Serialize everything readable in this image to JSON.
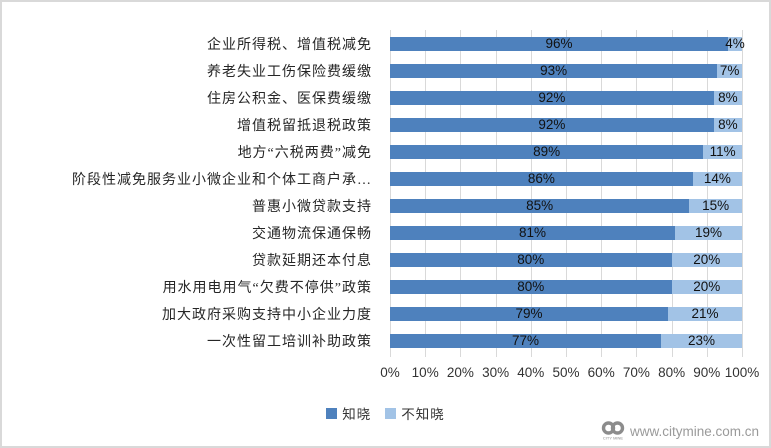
{
  "chart_data": {
    "type": "bar",
    "orientation": "horizontal",
    "stacked": true,
    "title": "",
    "categories": [
      "企业所得税、增值税减免",
      "养老失业工伤保险费缓缴",
      "住房公积金、医保费缓缴",
      "增值税留抵退税政策",
      "地方“六税两费”减免",
      "阶段性减免服务业小微企业和个体工商户承…",
      "普惠小微贷款支持",
      "交通物流保通保畅",
      "贷款延期还本付息",
      "用水用电用气“欠费不停供”政策",
      "加大政府采购支持中小企业力度",
      "一次性留工培训补助政策"
    ],
    "series": [
      {
        "name": "知晓",
        "color": "#4e81bd",
        "values": [
          96,
          93,
          92,
          92,
          89,
          86,
          85,
          81,
          80,
          80,
          79,
          77
        ]
      },
      {
        "name": "不知晓",
        "color": "#a2c3e6",
        "values": [
          4,
          7,
          8,
          8,
          11,
          14,
          15,
          19,
          20,
          20,
          21,
          23
        ]
      }
    ],
    "value_label_suffix": "%",
    "x_ticks": [
      "0%",
      "10%",
      "20%",
      "30%",
      "40%",
      "50%",
      "60%",
      "70%",
      "80%",
      "90%",
      "100%"
    ],
    "xlim": [
      0,
      100
    ],
    "gridlines": "vertical",
    "gridline_color": "#d9d9d9",
    "legend_position": "bottom"
  },
  "watermark": {
    "url": "www.citymine.com.cn",
    "logo_caption": "CITY MINE"
  }
}
